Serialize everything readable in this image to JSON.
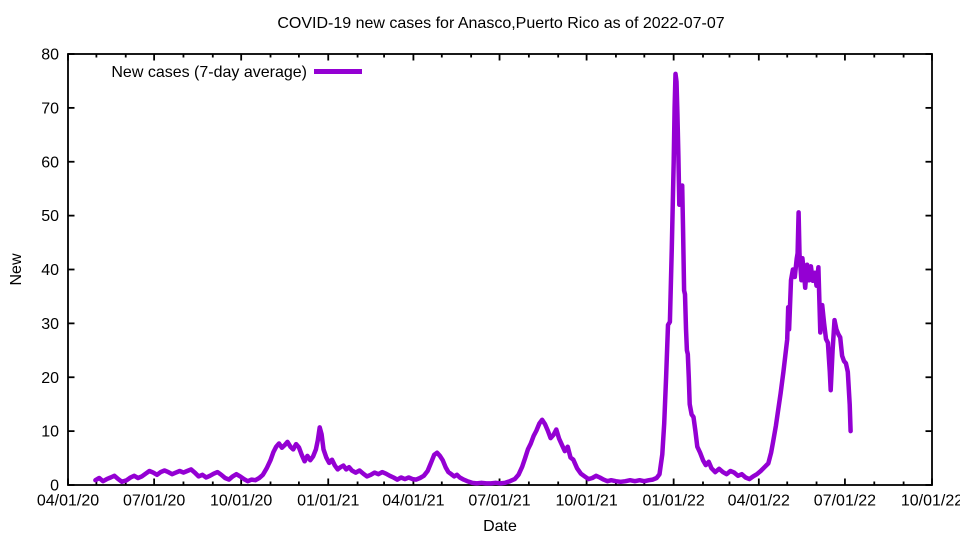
{
  "window": {
    "background": "#ffffff"
  },
  "chart_data": {
    "type": "line",
    "title": "COVID-19 new cases for Anasco,Puerto Rico as of 2022-07-07",
    "xlabel": "Date",
    "ylabel": "New",
    "grid": false,
    "legend_position": "top-left-inside",
    "axis_color": "#000000",
    "x_range": [
      "2020-04-01",
      "2022-10-01"
    ],
    "ylim": [
      0,
      80
    ],
    "x_tick_labels": [
      "04/01/20",
      "07/01/20",
      "10/01/20",
      "01/01/21",
      "04/01/21",
      "07/01/21",
      "10/01/21",
      "01/01/22",
      "04/01/22",
      "07/01/22",
      "10/01/22"
    ],
    "y_tick_labels": [
      "0",
      "10",
      "20",
      "30",
      "40",
      "50",
      "60",
      "70",
      "80"
    ],
    "y_tick_values": [
      0,
      10,
      20,
      30,
      40,
      50,
      60,
      70,
      80
    ],
    "series": [
      {
        "name": "New cases (7-day average)",
        "color": "#9400D3",
        "points": [
          [
            "2020-04-30",
            0.9
          ],
          [
            "2020-05-04",
            1.3
          ],
          [
            "2020-05-08",
            0.7
          ],
          [
            "2020-05-12",
            1.1
          ],
          [
            "2020-05-16",
            1.4
          ],
          [
            "2020-05-20",
            1.7
          ],
          [
            "2020-05-24",
            1.1
          ],
          [
            "2020-05-28",
            0.6
          ],
          [
            "2020-06-02",
            0.9
          ],
          [
            "2020-06-06",
            1.4
          ],
          [
            "2020-06-10",
            1.7
          ],
          [
            "2020-06-14",
            1.3
          ],
          [
            "2020-06-18",
            1.6
          ],
          [
            "2020-06-22",
            2.1
          ],
          [
            "2020-06-26",
            2.6
          ],
          [
            "2020-06-30",
            2.3
          ],
          [
            "2020-07-04",
            1.9
          ],
          [
            "2020-07-08",
            2.4
          ],
          [
            "2020-07-12",
            2.7
          ],
          [
            "2020-07-16",
            2.4
          ],
          [
            "2020-07-20",
            2.0
          ],
          [
            "2020-07-24",
            2.3
          ],
          [
            "2020-07-28",
            2.6
          ],
          [
            "2020-08-01",
            2.3
          ],
          [
            "2020-08-05",
            2.6
          ],
          [
            "2020-08-09",
            2.9
          ],
          [
            "2020-08-13",
            2.3
          ],
          [
            "2020-08-17",
            1.6
          ],
          [
            "2020-08-21",
            1.9
          ],
          [
            "2020-08-25",
            1.4
          ],
          [
            "2020-08-29",
            1.7
          ],
          [
            "2020-09-02",
            2.1
          ],
          [
            "2020-09-06",
            2.4
          ],
          [
            "2020-09-10",
            1.9
          ],
          [
            "2020-09-14",
            1.3
          ],
          [
            "2020-09-18",
            1.0
          ],
          [
            "2020-09-22",
            1.6
          ],
          [
            "2020-09-26",
            2.0
          ],
          [
            "2020-09-30",
            1.6
          ],
          [
            "2020-10-04",
            1.1
          ],
          [
            "2020-10-08",
            0.7
          ],
          [
            "2020-10-12",
            1.0
          ],
          [
            "2020-10-16",
            0.9
          ],
          [
            "2020-10-20",
            1.3
          ],
          [
            "2020-10-24",
            1.9
          ],
          [
            "2020-10-28",
            3.1
          ],
          [
            "2020-11-01",
            4.6
          ],
          [
            "2020-11-04",
            6.1
          ],
          [
            "2020-11-07",
            7.1
          ],
          [
            "2020-11-10",
            7.7
          ],
          [
            "2020-11-13",
            6.9
          ],
          [
            "2020-11-16",
            7.4
          ],
          [
            "2020-11-19",
            8.0
          ],
          [
            "2020-11-22",
            7.1
          ],
          [
            "2020-11-25",
            6.6
          ],
          [
            "2020-11-28",
            7.6
          ],
          [
            "2020-12-01",
            7.0
          ],
          [
            "2020-12-04",
            5.6
          ],
          [
            "2020-12-07",
            4.4
          ],
          [
            "2020-12-10",
            5.4
          ],
          [
            "2020-12-13",
            4.6
          ],
          [
            "2020-12-16",
            5.3
          ],
          [
            "2020-12-19",
            6.6
          ],
          [
            "2020-12-21",
            8.3
          ],
          [
            "2020-12-23",
            10.7
          ],
          [
            "2020-12-25",
            9.4
          ],
          [
            "2020-12-27",
            6.6
          ],
          [
            "2020-12-30",
            5.1
          ],
          [
            "2021-01-02",
            4.1
          ],
          [
            "2021-01-05",
            4.7
          ],
          [
            "2021-01-08",
            3.6
          ],
          [
            "2021-01-11",
            2.9
          ],
          [
            "2021-01-14",
            3.3
          ],
          [
            "2021-01-17",
            3.6
          ],
          [
            "2021-01-20",
            2.9
          ],
          [
            "2021-01-23",
            3.3
          ],
          [
            "2021-01-26",
            2.7
          ],
          [
            "2021-01-30",
            2.3
          ],
          [
            "2021-02-03",
            2.7
          ],
          [
            "2021-02-07",
            2.1
          ],
          [
            "2021-02-11",
            1.6
          ],
          [
            "2021-02-15",
            1.9
          ],
          [
            "2021-02-19",
            2.3
          ],
          [
            "2021-02-23",
            2.0
          ],
          [
            "2021-02-27",
            2.4
          ],
          [
            "2021-03-03",
            2.1
          ],
          [
            "2021-03-07",
            1.7
          ],
          [
            "2021-03-11",
            1.4
          ],
          [
            "2021-03-15",
            1.0
          ],
          [
            "2021-03-19",
            1.4
          ],
          [
            "2021-03-23",
            1.1
          ],
          [
            "2021-03-27",
            1.4
          ],
          [
            "2021-03-31",
            1.1
          ],
          [
            "2021-04-04",
            1.0
          ],
          [
            "2021-04-08",
            1.3
          ],
          [
            "2021-04-12",
            1.7
          ],
          [
            "2021-04-16",
            2.6
          ],
          [
            "2021-04-20",
            4.3
          ],
          [
            "2021-04-23",
            5.6
          ],
          [
            "2021-04-26",
            6.0
          ],
          [
            "2021-04-29",
            5.4
          ],
          [
            "2021-05-02",
            4.6
          ],
          [
            "2021-05-05",
            3.3
          ],
          [
            "2021-05-08",
            2.4
          ],
          [
            "2021-05-11",
            2.0
          ],
          [
            "2021-05-14",
            1.6
          ],
          [
            "2021-05-17",
            1.9
          ],
          [
            "2021-05-20",
            1.4
          ],
          [
            "2021-05-24",
            1.0
          ],
          [
            "2021-05-28",
            0.7
          ],
          [
            "2021-06-02",
            0.4
          ],
          [
            "2021-06-07",
            0.3
          ],
          [
            "2021-06-12",
            0.4
          ],
          [
            "2021-06-17",
            0.3
          ],
          [
            "2021-06-22",
            0.3
          ],
          [
            "2021-06-27",
            0.4
          ],
          [
            "2021-07-02",
            0.3
          ],
          [
            "2021-07-07",
            0.4
          ],
          [
            "2021-07-12",
            0.7
          ],
          [
            "2021-07-17",
            1.1
          ],
          [
            "2021-07-21",
            1.9
          ],
          [
            "2021-07-25",
            3.4
          ],
          [
            "2021-07-28",
            5.0
          ],
          [
            "2021-07-31",
            6.6
          ],
          [
            "2021-08-03",
            7.7
          ],
          [
            "2021-08-06",
            9.1
          ],
          [
            "2021-08-09",
            10.1
          ],
          [
            "2021-08-12",
            11.4
          ],
          [
            "2021-08-15",
            12.1
          ],
          [
            "2021-08-18",
            11.3
          ],
          [
            "2021-08-21",
            10.1
          ],
          [
            "2021-08-24",
            8.7
          ],
          [
            "2021-08-27",
            9.3
          ],
          [
            "2021-08-30",
            10.3
          ],
          [
            "2021-09-02",
            8.6
          ],
          [
            "2021-09-05",
            7.4
          ],
          [
            "2021-09-08",
            6.3
          ],
          [
            "2021-09-11",
            7.1
          ],
          [
            "2021-09-14",
            5.1
          ],
          [
            "2021-09-17",
            4.7
          ],
          [
            "2021-09-21",
            3.1
          ],
          [
            "2021-09-25",
            2.1
          ],
          [
            "2021-09-29",
            1.6
          ],
          [
            "2021-10-03",
            1.1
          ],
          [
            "2021-10-07",
            1.3
          ],
          [
            "2021-10-11",
            1.7
          ],
          [
            "2021-10-15",
            1.4
          ],
          [
            "2021-10-19",
            1.0
          ],
          [
            "2021-10-23",
            0.7
          ],
          [
            "2021-10-27",
            0.9
          ],
          [
            "2021-11-01",
            0.7
          ],
          [
            "2021-11-06",
            0.6
          ],
          [
            "2021-11-11",
            0.7
          ],
          [
            "2021-11-16",
            0.9
          ],
          [
            "2021-11-21",
            0.7
          ],
          [
            "2021-11-26",
            0.9
          ],
          [
            "2021-12-01",
            0.7
          ],
          [
            "2021-12-06",
            0.9
          ],
          [
            "2021-12-10",
            1.0
          ],
          [
            "2021-12-14",
            1.3
          ],
          [
            "2021-12-17",
            2.0
          ],
          [
            "2021-12-20",
            5.7
          ],
          [
            "2021-12-22",
            11.4
          ],
          [
            "2021-12-24",
            20.0
          ],
          [
            "2021-12-26",
            29.7
          ],
          [
            "2021-12-28",
            30.3
          ],
          [
            "2021-12-30",
            44.0
          ],
          [
            "2022-01-01",
            60.0
          ],
          [
            "2022-01-02",
            70.0
          ],
          [
            "2022-01-03",
            76.3
          ],
          [
            "2022-01-04",
            74.9
          ],
          [
            "2022-01-05",
            69.0
          ],
          [
            "2022-01-06",
            61.0
          ],
          [
            "2022-01-07",
            52.0
          ],
          [
            "2022-01-08",
            55.6
          ],
          [
            "2022-01-09",
            54.9
          ],
          [
            "2022-01-10",
            55.6
          ],
          [
            "2022-01-11",
            47.0
          ],
          [
            "2022-01-12",
            36.1
          ],
          [
            "2022-01-13",
            35.4
          ],
          [
            "2022-01-14",
            29.0
          ],
          [
            "2022-01-15",
            25.0
          ],
          [
            "2022-01-16",
            24.3
          ],
          [
            "2022-01-17",
            19.9
          ],
          [
            "2022-01-18",
            15.0
          ],
          [
            "2022-01-20",
            13.1
          ],
          [
            "2022-01-22",
            12.6
          ],
          [
            "2022-01-24",
            10.0
          ],
          [
            "2022-01-26",
            7.1
          ],
          [
            "2022-01-29",
            6.0
          ],
          [
            "2022-02-01",
            4.6
          ],
          [
            "2022-02-04",
            3.7
          ],
          [
            "2022-02-07",
            4.3
          ],
          [
            "2022-02-10",
            3.1
          ],
          [
            "2022-02-14",
            2.4
          ],
          [
            "2022-02-18",
            3.0
          ],
          [
            "2022-02-22",
            2.4
          ],
          [
            "2022-02-26",
            2.0
          ],
          [
            "2022-03-02",
            2.6
          ],
          [
            "2022-03-06",
            2.3
          ],
          [
            "2022-03-10",
            1.7
          ],
          [
            "2022-03-14",
            2.0
          ],
          [
            "2022-03-18",
            1.4
          ],
          [
            "2022-03-22",
            1.1
          ],
          [
            "2022-03-26",
            1.6
          ],
          [
            "2022-03-30",
            2.0
          ],
          [
            "2022-04-03",
            2.6
          ],
          [
            "2022-04-07",
            3.3
          ],
          [
            "2022-04-11",
            4.0
          ],
          [
            "2022-04-14",
            6.0
          ],
          [
            "2022-04-16",
            7.9
          ],
          [
            "2022-04-19",
            11.0
          ],
          [
            "2022-04-21",
            13.3
          ],
          [
            "2022-04-24",
            17.0
          ],
          [
            "2022-04-27",
            21.0
          ],
          [
            "2022-04-29",
            24.0
          ],
          [
            "2022-05-01",
            27.0
          ],
          [
            "2022-05-02",
            33.0
          ],
          [
            "2022-05-03",
            28.9
          ],
          [
            "2022-05-05",
            38.0
          ],
          [
            "2022-05-07",
            40.0
          ],
          [
            "2022-05-09",
            38.6
          ],
          [
            "2022-05-11",
            42.0
          ],
          [
            "2022-05-12",
            43.0
          ],
          [
            "2022-05-13",
            50.6
          ],
          [
            "2022-05-14",
            42.9
          ],
          [
            "2022-05-16",
            38.0
          ],
          [
            "2022-05-17",
            42.1
          ],
          [
            "2022-05-19",
            39.0
          ],
          [
            "2022-05-20",
            36.6
          ],
          [
            "2022-05-22",
            40.9
          ],
          [
            "2022-05-24",
            38.0
          ],
          [
            "2022-05-26",
            40.6
          ],
          [
            "2022-05-28",
            37.9
          ],
          [
            "2022-05-30",
            39.4
          ],
          [
            "2022-06-01",
            37.0
          ],
          [
            "2022-06-03",
            40.4
          ],
          [
            "2022-06-04",
            34.0
          ],
          [
            "2022-06-05",
            28.3
          ],
          [
            "2022-06-07",
            33.4
          ],
          [
            "2022-06-09",
            30.0
          ],
          [
            "2022-06-11",
            27.1
          ],
          [
            "2022-06-13",
            26.4
          ],
          [
            "2022-06-15",
            21.0
          ],
          [
            "2022-06-16",
            17.6
          ],
          [
            "2022-06-18",
            25.0
          ],
          [
            "2022-06-20",
            30.6
          ],
          [
            "2022-06-22",
            28.9
          ],
          [
            "2022-06-24",
            28.0
          ],
          [
            "2022-06-26",
            27.4
          ],
          [
            "2022-06-28",
            24.0
          ],
          [
            "2022-06-30",
            23.0
          ],
          [
            "2022-07-02",
            22.6
          ],
          [
            "2022-07-04",
            21.0
          ],
          [
            "2022-07-06",
            15.0
          ],
          [
            "2022-07-07",
            10.0
          ]
        ]
      }
    ]
  }
}
